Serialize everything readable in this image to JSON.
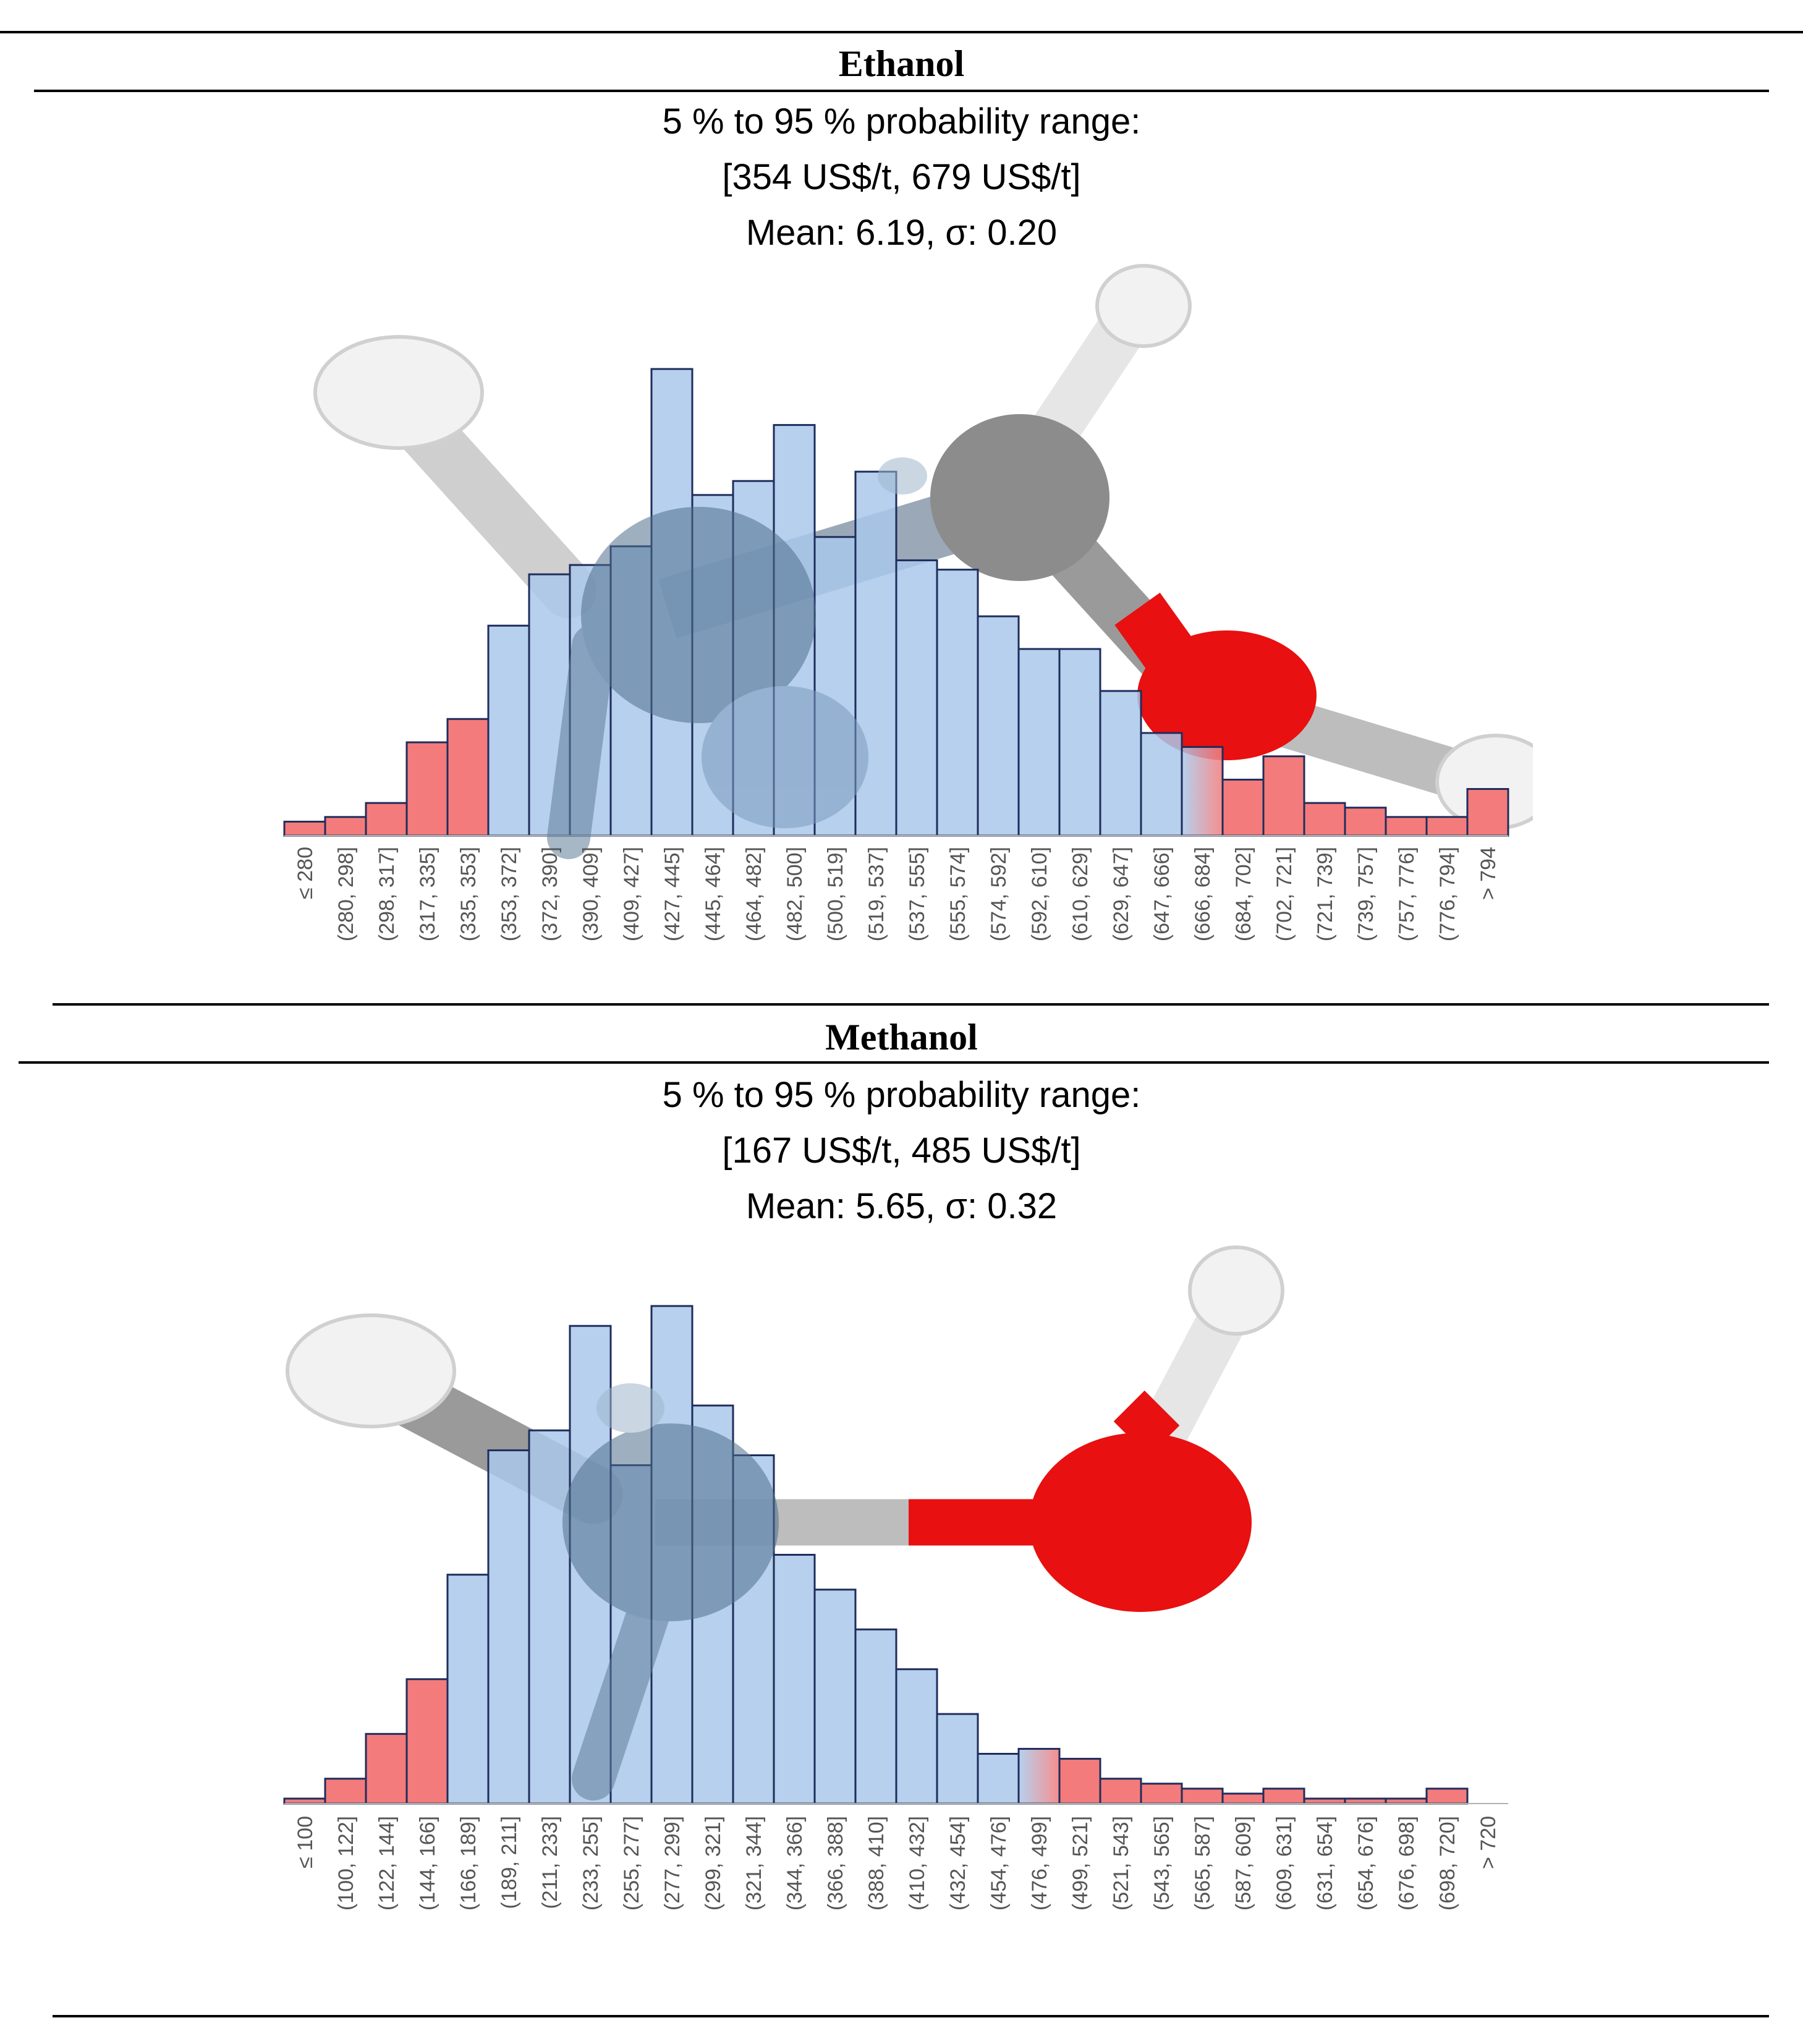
{
  "panels": [
    {
      "title": "Ethanol",
      "range_label": "5 % to 95 % probability range:",
      "range_values": "[354 US$/t, 679 US$/t]",
      "mean_sigma": "Mean: 6.19, σ: 0.20"
    },
    {
      "title": "Methanol",
      "range_label": "5 % to 95 % probability range:",
      "range_values": "[167 US$/t, 485 US$/t]",
      "mean_sigma": "Mean: 5.65, σ: 0.32"
    }
  ],
  "colors": {
    "tail": "#f47b7b",
    "central": "#a9c8ea",
    "edge": "#1f2d5c",
    "hydrogen": "#f2f2f2",
    "carbon": "#8c8c8c",
    "oxygen": "#e81010"
  },
  "chart_data": [
    {
      "type": "bar",
      "title": "Ethanol",
      "ylim": [
        0,
        100
      ],
      "categories": [
        "≤ 280",
        "(280, 298]",
        "(298, 317]",
        "(317, 335]",
        "(335, 353]",
        "(353, 372]",
        "(372, 390]",
        "(390, 409]",
        "(409, 427]",
        "(427, 445]",
        "(445, 464]",
        "(464, 482]",
        "(482, 500]",
        "(500, 519]",
        "(519, 537]",
        "(537, 555]",
        "(555, 574]",
        "(574, 592]",
        "(592, 610]",
        "(610, 629]",
        "(629, 647]",
        "(647, 666]",
        "(666, 684]",
        "(684, 702]",
        "(702, 721]",
        "(721, 739]",
        "(739, 757]",
        "(757, 776]",
        "(776, 794]",
        "> 794"
      ],
      "values": [
        3,
        4,
        7,
        20,
        25,
        45,
        56,
        58,
        62,
        100,
        73,
        76,
        88,
        64,
        78,
        59,
        57,
        47,
        40,
        40,
        31,
        22,
        19,
        12,
        17,
        7,
        6,
        4,
        4,
        10
      ],
      "tail_flags": [
        1,
        1,
        1,
        1,
        1,
        0,
        0,
        0,
        0,
        0,
        0,
        0,
        0,
        0,
        0,
        0,
        0,
        0,
        0,
        0,
        0,
        0,
        2,
        1,
        1,
        1,
        1,
        1,
        1,
        1
      ]
    },
    {
      "type": "bar",
      "title": "Methanol",
      "ylim": [
        0,
        100
      ],
      "categories": [
        "≤ 100",
        "(100, 122]",
        "(122, 144]",
        "(144, 166]",
        "(166, 189]",
        "(189, 211]",
        "(211, 233]",
        "(233, 255]",
        "(255, 277]",
        "(277, 299]",
        "(299, 321]",
        "(321, 344]",
        "(344, 366]",
        "(366, 388]",
        "(388, 410]",
        "(410, 432]",
        "(432, 454]",
        "(454, 476]",
        "(476, 499]",
        "(499, 521]",
        "(521, 543]",
        "(543, 565]",
        "(565, 587]",
        "(587, 609]",
        "(609, 631]",
        "(631, 654]",
        "(654, 676]",
        "(676, 698]",
        "(698, 720]",
        "> 720"
      ],
      "values": [
        1,
        5,
        14,
        25,
        46,
        71,
        75,
        96,
        68,
        100,
        80,
        70,
        50,
        43,
        35,
        27,
        18,
        10,
        11,
        9,
        5,
        4,
        3,
        2,
        3,
        1,
        1,
        1,
        3,
        0
      ],
      "tail_flags": [
        1,
        1,
        1,
        1,
        0,
        0,
        0,
        0,
        0,
        0,
        0,
        0,
        0,
        0,
        0,
        0,
        0,
        0,
        2,
        1,
        1,
        1,
        1,
        1,
        1,
        1,
        1,
        1,
        1,
        1
      ]
    }
  ]
}
